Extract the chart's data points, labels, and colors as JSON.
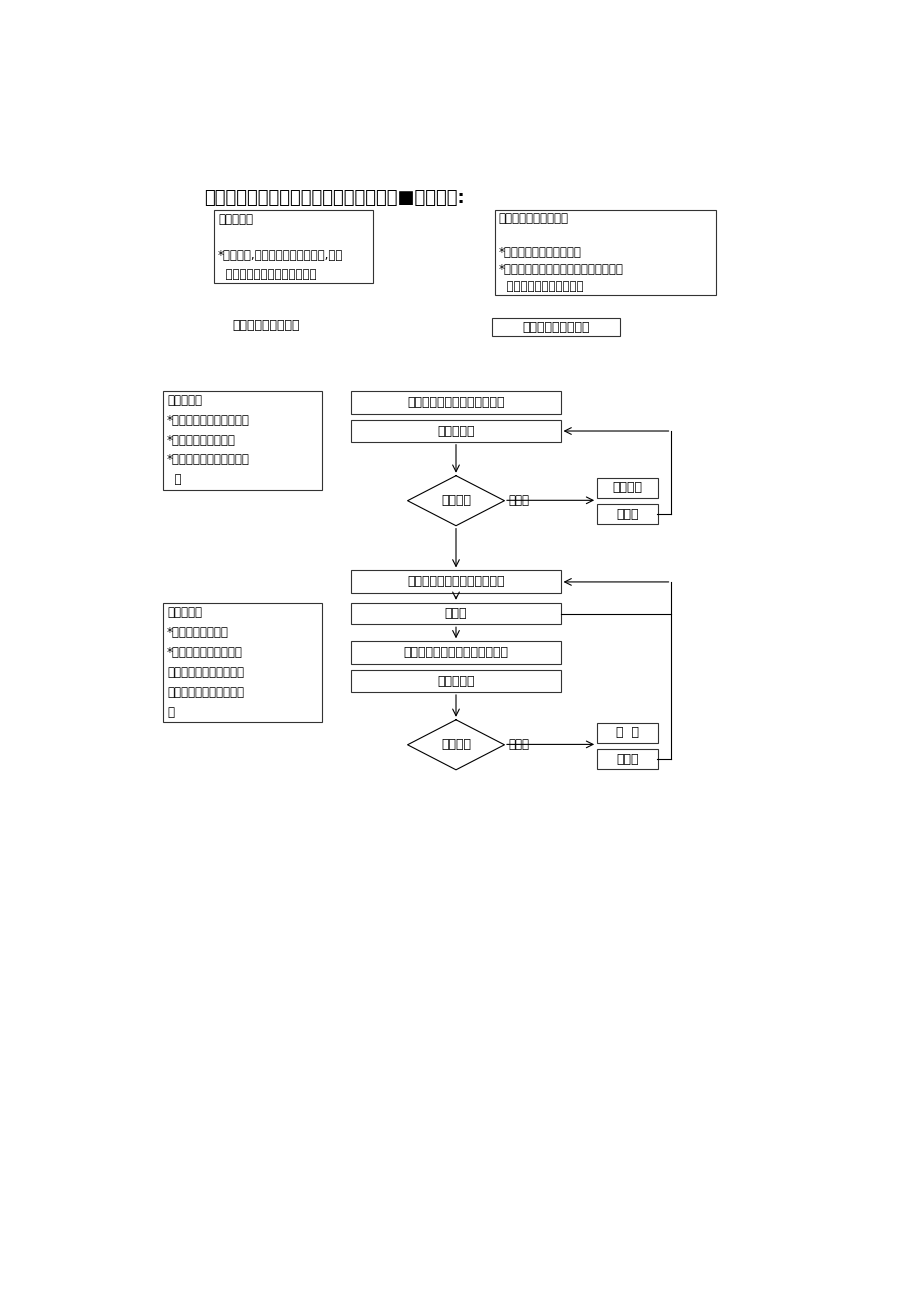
{
  "title": "某大型地产公司工程部建筑暖通给排水质■管理程序:",
  "bg_color": "#ffffff",
  "box1_lines": [
    "准备工作：",
    "",
    "*熟悉图纸,将工艺图与土建图对照,核查",
    "  有无矛盾，汇集问题准备审图"
  ],
  "box2_lines": [
    "填写开工申请并提供：",
    "",
    "*施工组织设计、施工方案",
    "*工人、技术人员数量、机械品种数量，",
    "  承包人、分包人资质证书"
  ],
  "label_left1": "承包人、监理、业主",
  "label_right1_box": "承包人、监理、业主",
  "box3_lines": [
    "审核内容：",
    "*承包人、分包人资质文件",
    "*人员工种的上岗证书",
    "*施工组织设计、施工方案",
    "  等"
  ],
  "rect1_text": "审核开工申请和施工组织方案",
  "rect2_text": "业主、监理",
  "diamond1_text": "审核结果",
  "diamond1_fail": "不合格",
  "rect3_text": "修改完善",
  "rect4_text": "承包人",
  "rect5_text": "制作零部位、预埋件及隐蔽工",
  "box4_lines": [
    "验收内容：",
    "*必要时作材性试验",
    "*检查器材规格型号是否",
    "与设计相符，质保文件是",
    "否齐全，外观有无质量问",
    "题"
  ],
  "rect6_text": "承包人",
  "rect7_text": "按设计要求验收施工材料或器材",
  "rect8_text": "业主、监理",
  "diamond2_text": "试验结果",
  "diamond2_fail": "不合格",
  "rect9_text": "退  换",
  "rect10_text": "承包人"
}
